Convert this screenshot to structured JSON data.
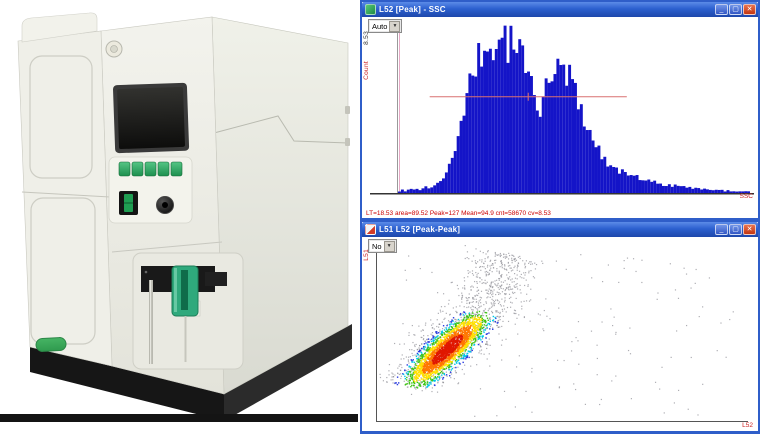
{
  "photo": {
    "description": "Benchtop particle analyzer: white housing, dark display screen, five green buttons, power rocker switch, round black knob, recessed sample station with green clamp and metal probe, green oval logo badge, black base plinth",
    "colors": {
      "housing": "#efefe8",
      "housing_side": "#e2e3da",
      "screen": "#151513",
      "button_green": "#2fae62",
      "clamp_green": "#2fa97c",
      "badge_green": "#3aa95c",
      "base_black": "#161616"
    }
  },
  "window_chrome": {
    "minimize": "_",
    "maximize": "▢",
    "close": "✕"
  },
  "window_histogram": {
    "title": "L52 [Peak] - SSC",
    "dropdown_value": "Auto",
    "y_axis_max_label": "8.53",
    "y_axis_label": "Count",
    "x_axis_label": "SSC",
    "status_line": "LT=18.53  area=89.52  Peak=127  Mean=94.9  cnt=58670  cv=8.53",
    "marker": {
      "from": 0.09,
      "to": 0.65,
      "y": 0.42
    },
    "chart_data": {
      "type": "bar",
      "style": "frequency-histogram",
      "xlabel": "SSC",
      "ylabel": "Count",
      "n_bins": 120,
      "ylim": [
        0,
        1
      ],
      "fill_color": "#1414c8",
      "values": [
        0.01,
        0.02,
        0.01,
        0.02,
        0.03,
        0.02,
        0.03,
        0.02,
        0.03,
        0.04,
        0.03,
        0.04,
        0.05,
        0.06,
        0.08,
        0.1,
        0.13,
        0.17,
        0.22,
        0.28,
        0.35,
        0.42,
        0.5,
        0.58,
        0.66,
        0.73,
        0.78,
        0.83,
        0.86,
        0.9,
        0.84,
        0.93,
        0.88,
        0.97,
        0.91,
        1.0,
        0.94,
        0.89,
        0.96,
        0.9,
        0.85,
        0.91,
        0.86,
        0.8,
        0.74,
        0.68,
        0.62,
        0.57,
        0.55,
        0.58,
        0.63,
        0.68,
        0.74,
        0.7,
        0.77,
        0.8,
        0.76,
        0.72,
        0.75,
        0.69,
        0.64,
        0.58,
        0.52,
        0.47,
        0.42,
        0.38,
        0.34,
        0.3,
        0.27,
        0.24,
        0.21,
        0.19,
        0.17,
        0.16,
        0.15,
        0.14,
        0.13,
        0.12,
        0.12,
        0.11,
        0.1,
        0.1,
        0.09,
        0.09,
        0.08,
        0.08,
        0.07,
        0.07,
        0.06,
        0.06,
        0.05,
        0.05,
        0.05,
        0.04,
        0.05,
        0.04,
        0.04,
        0.04,
        0.03,
        0.04,
        0.03,
        0.03,
        0.03,
        0.02,
        0.03,
        0.02,
        0.02,
        0.02,
        0.02,
        0.02,
        0.02,
        0.01,
        0.02,
        0.01,
        0.01,
        0.01,
        0.01,
        0.01,
        0.01,
        0.01
      ]
    }
  },
  "window_scatter": {
    "title": "L51 L52 [Peak-Peak]",
    "dropdown_value": "No",
    "y_axis_label": "L51",
    "x_axis_label": "L52",
    "chart_data": {
      "type": "scatter",
      "style": "density-dot-plot",
      "xlabel": "L52",
      "ylabel": "L51",
      "description": "Elongated diagonal event cluster from lower-left to upper-middle; core density red/orange grading through yellow, green, cyan, blue to sparse gray outliers",
      "cluster": {
        "start": [
          0.09,
          0.81
        ],
        "mid": [
          0.29,
          0.37
        ],
        "tail_end": [
          0.36,
          0.05
        ],
        "core_sd": 0.028,
        "halo_sd": 0.05,
        "n_core": 2400,
        "n_halo": 1000,
        "n_background": 150,
        "seed": 1337
      },
      "density_colors": [
        "#e01800",
        "#ff7700",
        "#ffe000",
        "#3ec414",
        "#00c8e8",
        "#2a3ce0"
      ],
      "background_dot_color": "#9a9aa0"
    }
  },
  "colors": {
    "titlebar_top": "#5b8be8",
    "titlebar_mid": "#2c60cf",
    "titlebar_bottom": "#1d47ab",
    "window_border": "#2f5ec9",
    "close_button_top": "#e8724d",
    "close_button_bottom": "#c23512",
    "button_top": "#7396e8",
    "button_bottom": "#3156c4",
    "status_text": "#cc0000",
    "label_red": "#cc2222",
    "marker": "#d97070",
    "hist_fill": "#1414c8",
    "axis_dark": "#333333",
    "axis_gray": "#9a9a9a",
    "pink_line": "#e8aac6"
  }
}
